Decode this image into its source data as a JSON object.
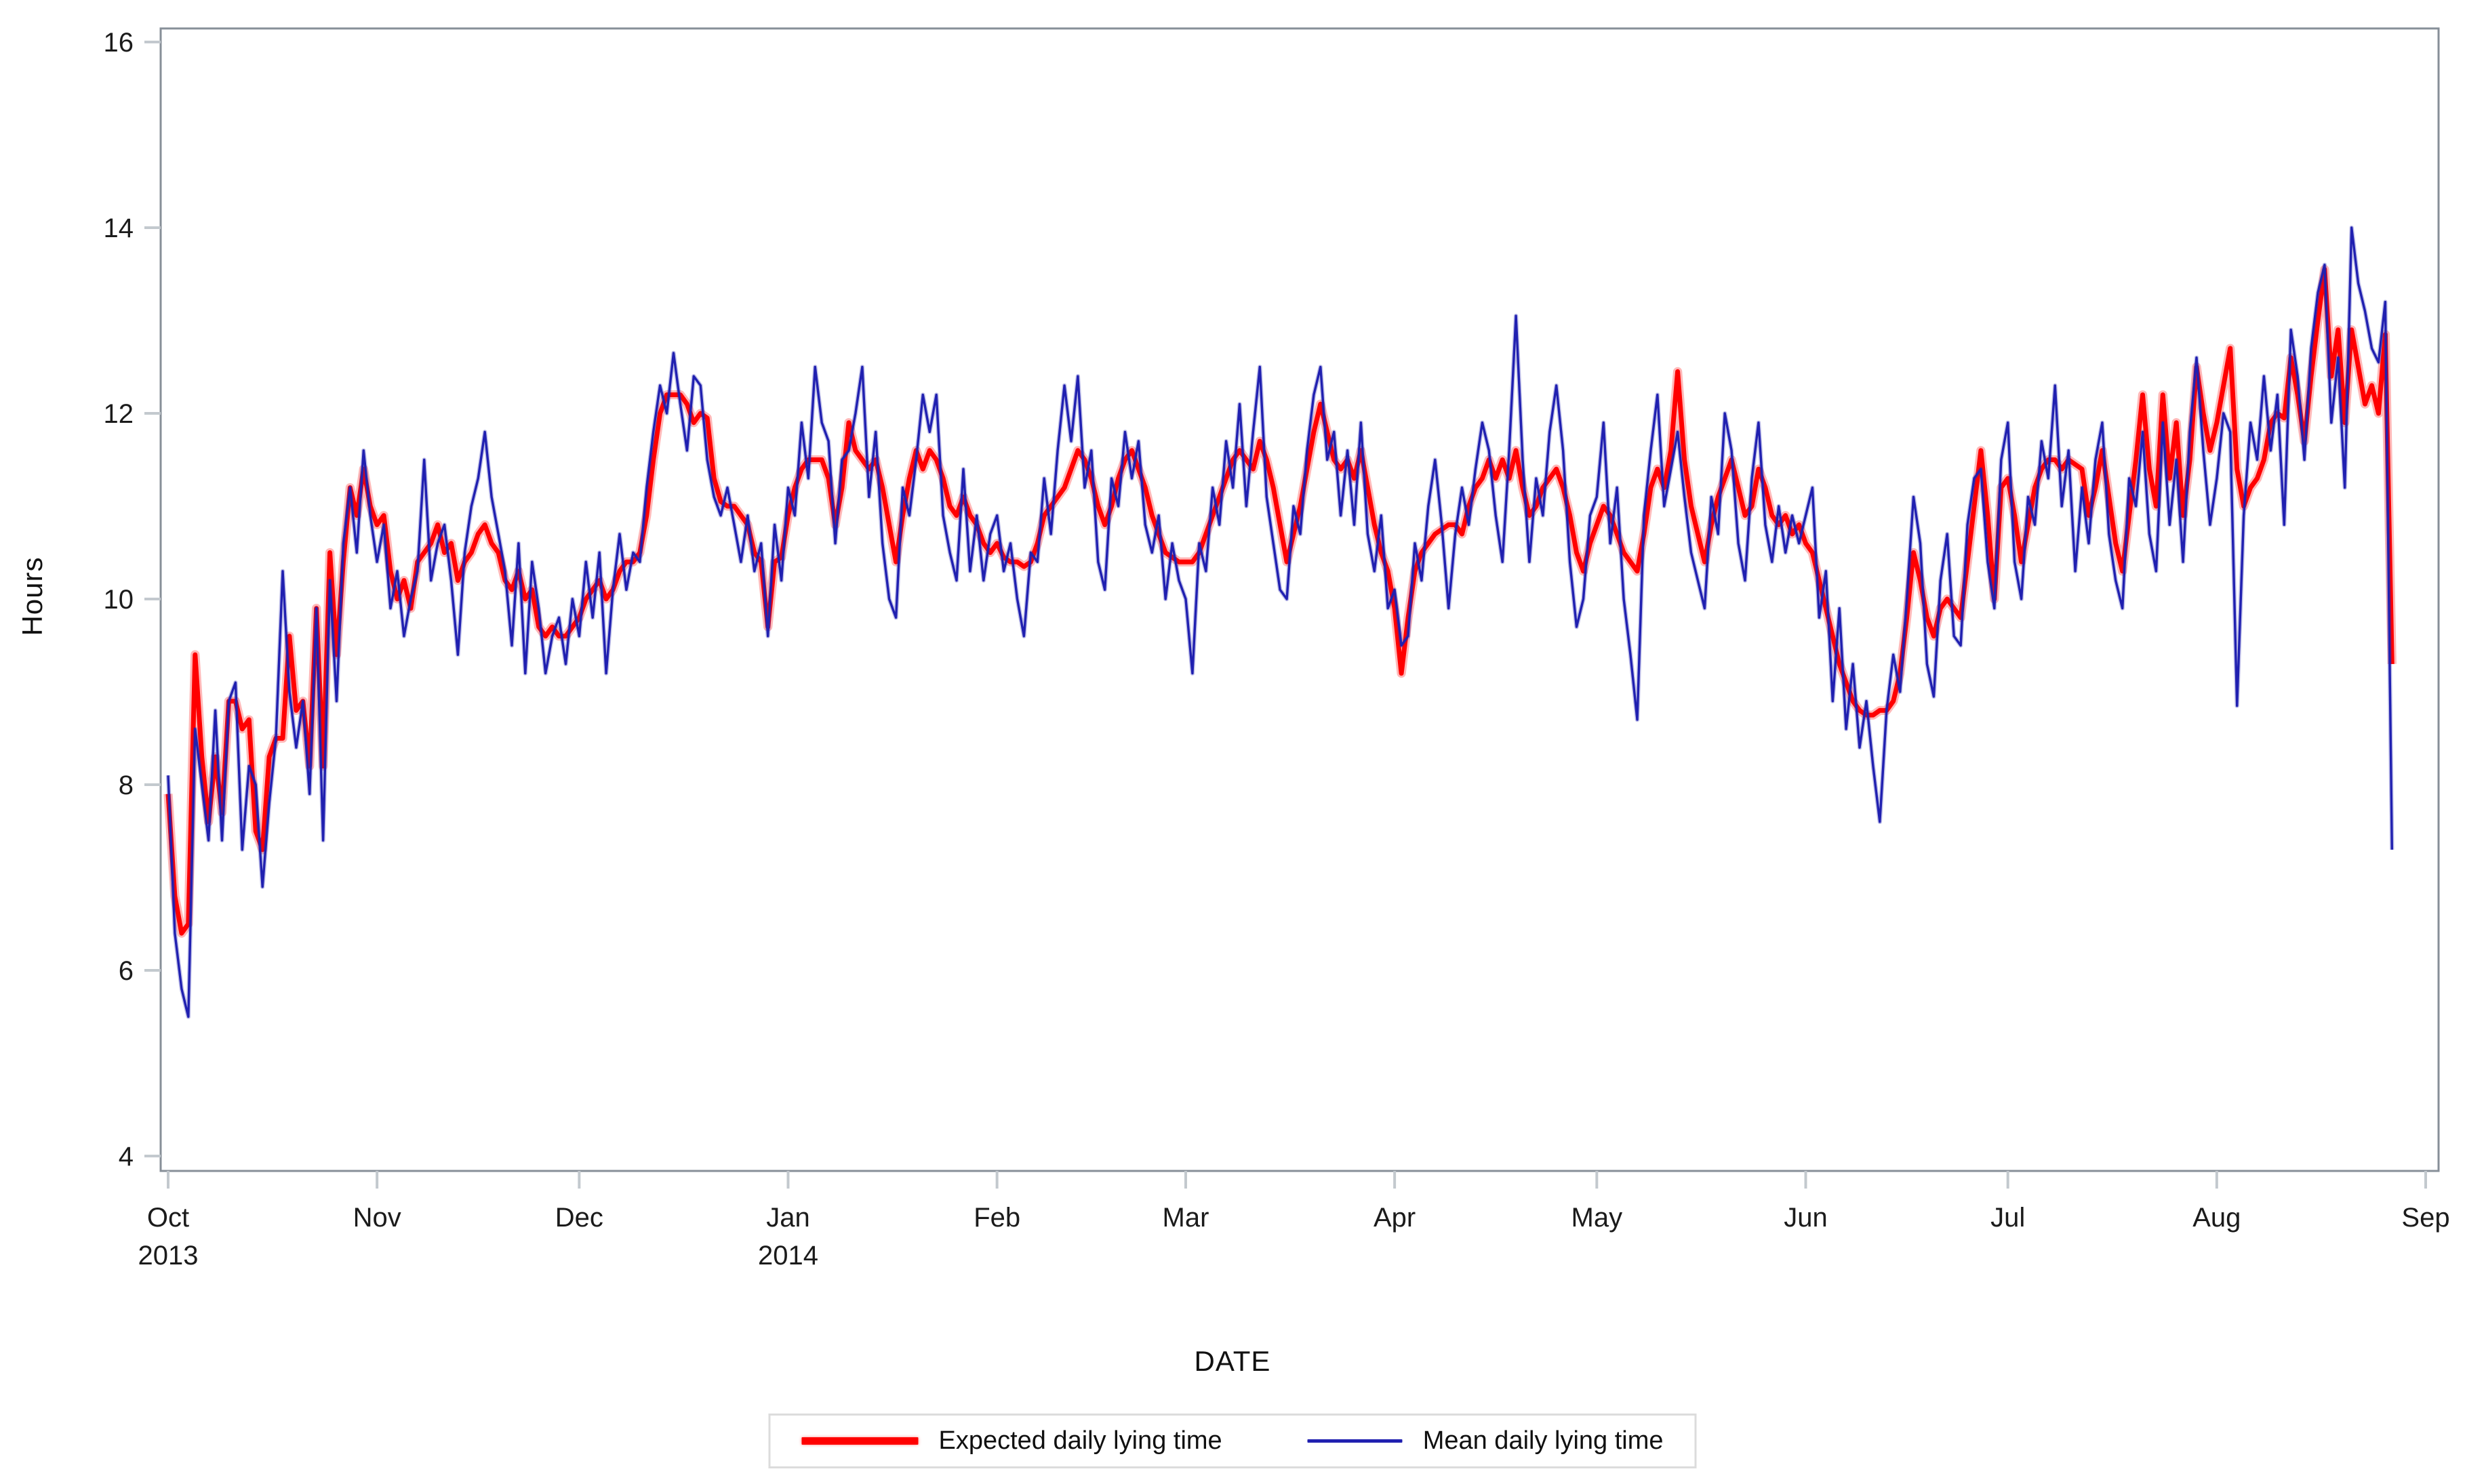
{
  "chart_data": {
    "type": "line",
    "title": "",
    "xlabel": "DATE",
    "ylabel": "Hours",
    "x_unit": "day",
    "x_start_date": "2013-10-01",
    "x_days_span": 335,
    "ylim": [
      4,
      16
    ],
    "y_ticks": [
      4,
      6,
      8,
      10,
      12,
      14,
      16
    ],
    "grid": false,
    "legend_position": "bottom-center",
    "axis_color": "#878F98",
    "tick_color": "#C3C9CE",
    "tick_label_color": "#1b1b1b",
    "x_ticks": [
      {
        "label": "Oct",
        "year": "2013",
        "day": 0
      },
      {
        "label": "Nov",
        "year": "",
        "day": 31
      },
      {
        "label": "Dec",
        "year": "",
        "day": 61
      },
      {
        "label": "Jan",
        "year": "2014",
        "day": 92
      },
      {
        "label": "Feb",
        "year": "",
        "day": 123
      },
      {
        "label": "Mar",
        "year": "",
        "day": 151
      },
      {
        "label": "Apr",
        "year": "",
        "day": 182
      },
      {
        "label": "May",
        "year": "",
        "day": 212
      },
      {
        "label": "Jun",
        "year": "",
        "day": 243
      },
      {
        "label": "Jul",
        "year": "",
        "day": 273
      },
      {
        "label": "Aug",
        "year": "",
        "day": 304
      },
      {
        "label": "Sep",
        "year": "",
        "day": 335
      }
    ],
    "series": [
      {
        "name": "Expected daily lying time",
        "color": "#FF0000",
        "line_width": 7,
        "values": [
          7.9,
          6.8,
          6.4,
          6.5,
          9.4,
          8.3,
          7.6,
          8.3,
          7.7,
          8.9,
          8.9,
          8.6,
          8.7,
          7.5,
          7.3,
          8.3,
          8.5,
          8.5,
          9.6,
          8.8,
          8.9,
          8.2,
          9.9,
          8.2,
          10.5,
          9.4,
          10.4,
          11.2,
          10.9,
          11.4,
          11.0,
          10.8,
          10.9,
          10.3,
          10.0,
          10.2,
          9.9,
          10.4,
          10.5,
          10.6,
          10.8,
          10.5,
          10.6,
          10.2,
          10.4,
          10.5,
          10.7,
          10.8,
          10.6,
          10.5,
          10.2,
          10.1,
          10.3,
          10.0,
          10.1,
          9.7,
          9.6,
          9.7,
          9.6,
          9.6,
          9.7,
          9.8,
          10.0,
          10.1,
          10.2,
          10.0,
          10.1,
          10.3,
          10.4,
          10.4,
          10.5,
          10.9,
          11.5,
          12.0,
          12.2,
          12.2,
          12.2,
          12.1,
          11.9,
          12.0,
          11.95,
          11.3,
          11.05,
          11.0,
          11.0,
          10.9,
          10.8,
          10.5,
          10.4,
          9.7,
          10.4,
          10.45,
          10.9,
          11.2,
          11.4,
          11.5,
          11.5,
          11.5,
          11.3,
          10.8,
          11.2,
          11.9,
          11.6,
          11.5,
          11.4,
          11.5,
          11.2,
          10.8,
          10.4,
          10.9,
          11.3,
          11.6,
          11.4,
          11.6,
          11.5,
          11.3,
          11.0,
          10.9,
          11.1,
          10.9,
          10.8,
          10.6,
          10.5,
          10.6,
          10.45,
          10.4,
          10.4,
          10.35,
          10.4,
          10.6,
          10.9,
          11.0,
          11.1,
          11.2,
          11.4,
          11.6,
          11.5,
          11.3,
          11.0,
          10.8,
          11.0,
          11.3,
          11.5,
          11.6,
          11.4,
          11.2,
          10.9,
          10.7,
          10.5,
          10.45,
          10.4,
          10.4,
          10.4,
          10.5,
          10.7,
          10.9,
          11.1,
          11.3,
          11.5,
          11.6,
          11.5,
          11.4,
          11.7,
          11.5,
          11.2,
          10.8,
          10.4,
          10.7,
          11.0,
          11.4,
          11.8,
          12.1,
          11.8,
          11.5,
          11.4,
          11.5,
          11.3,
          11.6,
          11.2,
          10.8,
          10.5,
          10.3,
          9.9,
          9.2,
          9.8,
          10.3,
          10.5,
          10.6,
          10.7,
          10.75,
          10.8,
          10.8,
          10.7,
          11.0,
          11.2,
          11.3,
          11.5,
          11.3,
          11.5,
          11.3,
          11.6,
          11.2,
          10.9,
          11.0,
          11.2,
          11.3,
          11.4,
          11.2,
          10.9,
          10.5,
          10.3,
          10.6,
          10.8,
          11.0,
          10.9,
          10.7,
          10.5,
          10.4,
          10.3,
          10.7,
          11.2,
          11.4,
          11.2,
          11.6,
          12.45,
          11.5,
          11.0,
          10.7,
          10.4,
          10.8,
          11.1,
          11.3,
          11.5,
          11.2,
          10.9,
          11.0,
          11.4,
          11.2,
          10.9,
          10.8,
          10.9,
          10.7,
          10.8,
          10.6,
          10.5,
          10.2,
          9.9,
          9.6,
          9.3,
          9.1,
          8.9,
          8.8,
          8.75,
          8.75,
          8.8,
          8.8,
          8.9,
          9.2,
          9.8,
          10.5,
          10.2,
          9.8,
          9.6,
          9.9,
          10.0,
          9.9,
          9.8,
          10.4,
          11.0,
          11.6,
          10.9,
          10.0,
          11.2,
          11.3,
          10.9,
          10.4,
          10.8,
          11.2,
          11.4,
          11.5,
          11.5,
          11.4,
          11.5,
          11.45,
          11.4,
          10.9,
          11.2,
          11.6,
          11.1,
          10.6,
          10.3,
          10.9,
          11.5,
          12.2,
          11.4,
          11.0,
          12.2,
          11.3,
          11.9,
          10.9,
          11.5,
          12.5,
          12.0,
          11.6,
          11.9,
          12.3,
          12.7,
          11.4,
          11.0,
          11.2,
          11.3,
          11.5,
          11.9,
          12.0,
          11.95,
          12.6,
          12.2,
          11.7,
          12.4,
          13.0,
          13.55,
          12.4,
          12.9,
          11.9,
          12.9,
          12.5,
          12.1,
          12.3,
          12.0,
          12.85,
          9.3
        ]
      },
      {
        "name": "Mean daily lying time",
        "color": "#2020B0",
        "line_width": 3.4,
        "values": [
          8.1,
          6.4,
          5.8,
          5.5,
          8.6,
          8.0,
          7.4,
          8.8,
          7.4,
          8.9,
          9.1,
          7.3,
          8.2,
          8.0,
          6.9,
          7.8,
          8.5,
          10.3,
          9.0,
          8.4,
          8.9,
          7.9,
          9.9,
          7.4,
          10.2,
          8.9,
          10.6,
          11.2,
          10.5,
          11.6,
          10.9,
          10.4,
          10.8,
          9.9,
          10.3,
          9.6,
          10.0,
          10.3,
          11.5,
          10.2,
          10.6,
          10.8,
          10.2,
          9.4,
          10.5,
          11.0,
          11.3,
          11.8,
          11.1,
          10.7,
          10.3,
          9.5,
          10.6,
          9.2,
          10.4,
          9.9,
          9.2,
          9.6,
          9.8,
          9.3,
          10.0,
          9.6,
          10.4,
          9.8,
          10.5,
          9.2,
          10.1,
          10.7,
          10.1,
          10.5,
          10.4,
          11.2,
          11.8,
          12.3,
          12.0,
          12.65,
          12.1,
          11.6,
          12.4,
          12.3,
          11.5,
          11.1,
          10.9,
          11.2,
          10.8,
          10.4,
          10.9,
          10.3,
          10.6,
          9.6,
          10.8,
          10.2,
          11.2,
          10.9,
          11.9,
          11.3,
          12.5,
          11.9,
          11.7,
          10.6,
          11.5,
          11.6,
          12.0,
          12.5,
          11.1,
          11.8,
          10.6,
          10.0,
          9.8,
          11.2,
          10.9,
          11.5,
          12.2,
          11.8,
          12.2,
          10.9,
          10.5,
          10.2,
          11.4,
          10.3,
          10.9,
          10.2,
          10.7,
          10.9,
          10.3,
          10.6,
          10.0,
          9.6,
          10.5,
          10.4,
          11.3,
          10.7,
          11.6,
          12.3,
          11.7,
          12.4,
          11.2,
          11.6,
          10.4,
          10.1,
          11.3,
          11.0,
          11.8,
          11.3,
          11.7,
          10.8,
          10.5,
          10.9,
          10.0,
          10.6,
          10.2,
          10.0,
          9.2,
          10.6,
          10.3,
          11.2,
          10.8,
          11.7,
          11.2,
          12.1,
          11.0,
          11.8,
          12.5,
          11.1,
          10.6,
          10.1,
          10.0,
          11.0,
          10.7,
          11.6,
          12.2,
          12.5,
          11.5,
          11.8,
          10.9,
          11.6,
          10.8,
          11.9,
          10.7,
          10.3,
          10.9,
          9.9,
          10.1,
          9.5,
          9.6,
          10.6,
          10.2,
          11.0,
          11.5,
          10.8,
          9.9,
          10.7,
          11.2,
          10.8,
          11.4,
          11.9,
          11.6,
          10.9,
          10.4,
          11.6,
          13.05,
          11.5,
          10.4,
          11.3,
          10.9,
          11.8,
          12.3,
          11.6,
          10.4,
          9.7,
          10.0,
          10.9,
          11.1,
          11.9,
          10.6,
          11.2,
          10.0,
          9.4,
          8.7,
          10.9,
          11.6,
          12.2,
          11.0,
          11.4,
          11.8,
          11.1,
          10.5,
          10.2,
          9.9,
          11.1,
          10.7,
          12.0,
          11.6,
          10.6,
          10.2,
          11.3,
          11.9,
          10.8,
          10.4,
          11.0,
          10.5,
          10.9,
          10.6,
          10.9,
          11.2,
          9.8,
          10.3,
          8.9,
          9.9,
          8.6,
          9.3,
          8.4,
          8.9,
          8.2,
          7.6,
          8.8,
          9.4,
          9.0,
          10.0,
          11.1,
          10.6,
          9.3,
          8.95,
          10.2,
          10.7,
          9.6,
          9.5,
          10.8,
          11.3,
          11.4,
          10.4,
          9.9,
          11.5,
          11.9,
          10.4,
          10.0,
          11.1,
          10.8,
          11.7,
          11.3,
          12.3,
          11.0,
          11.6,
          10.3,
          11.2,
          10.6,
          11.5,
          11.9,
          10.7,
          10.2,
          9.9,
          11.3,
          11.0,
          11.8,
          10.7,
          10.3,
          11.9,
          10.8,
          11.5,
          10.4,
          11.8,
          12.6,
          11.6,
          10.8,
          11.3,
          12.0,
          11.8,
          8.85,
          10.9,
          11.9,
          11.5,
          12.4,
          11.6,
          12.2,
          10.8,
          12.9,
          12.4,
          11.5,
          12.7,
          13.3,
          13.6,
          11.9,
          12.6,
          11.2,
          14.0,
          13.4,
          13.1,
          12.7,
          12.55,
          13.2,
          7.3
        ]
      }
    ]
  },
  "axes": {
    "y_title": "Hours",
    "x_title": "DATE"
  },
  "legend": {
    "items": [
      {
        "label": "Expected daily lying time",
        "color": "#FF0000"
      },
      {
        "label": "Mean daily lying time",
        "color": "#2020B0"
      }
    ]
  }
}
